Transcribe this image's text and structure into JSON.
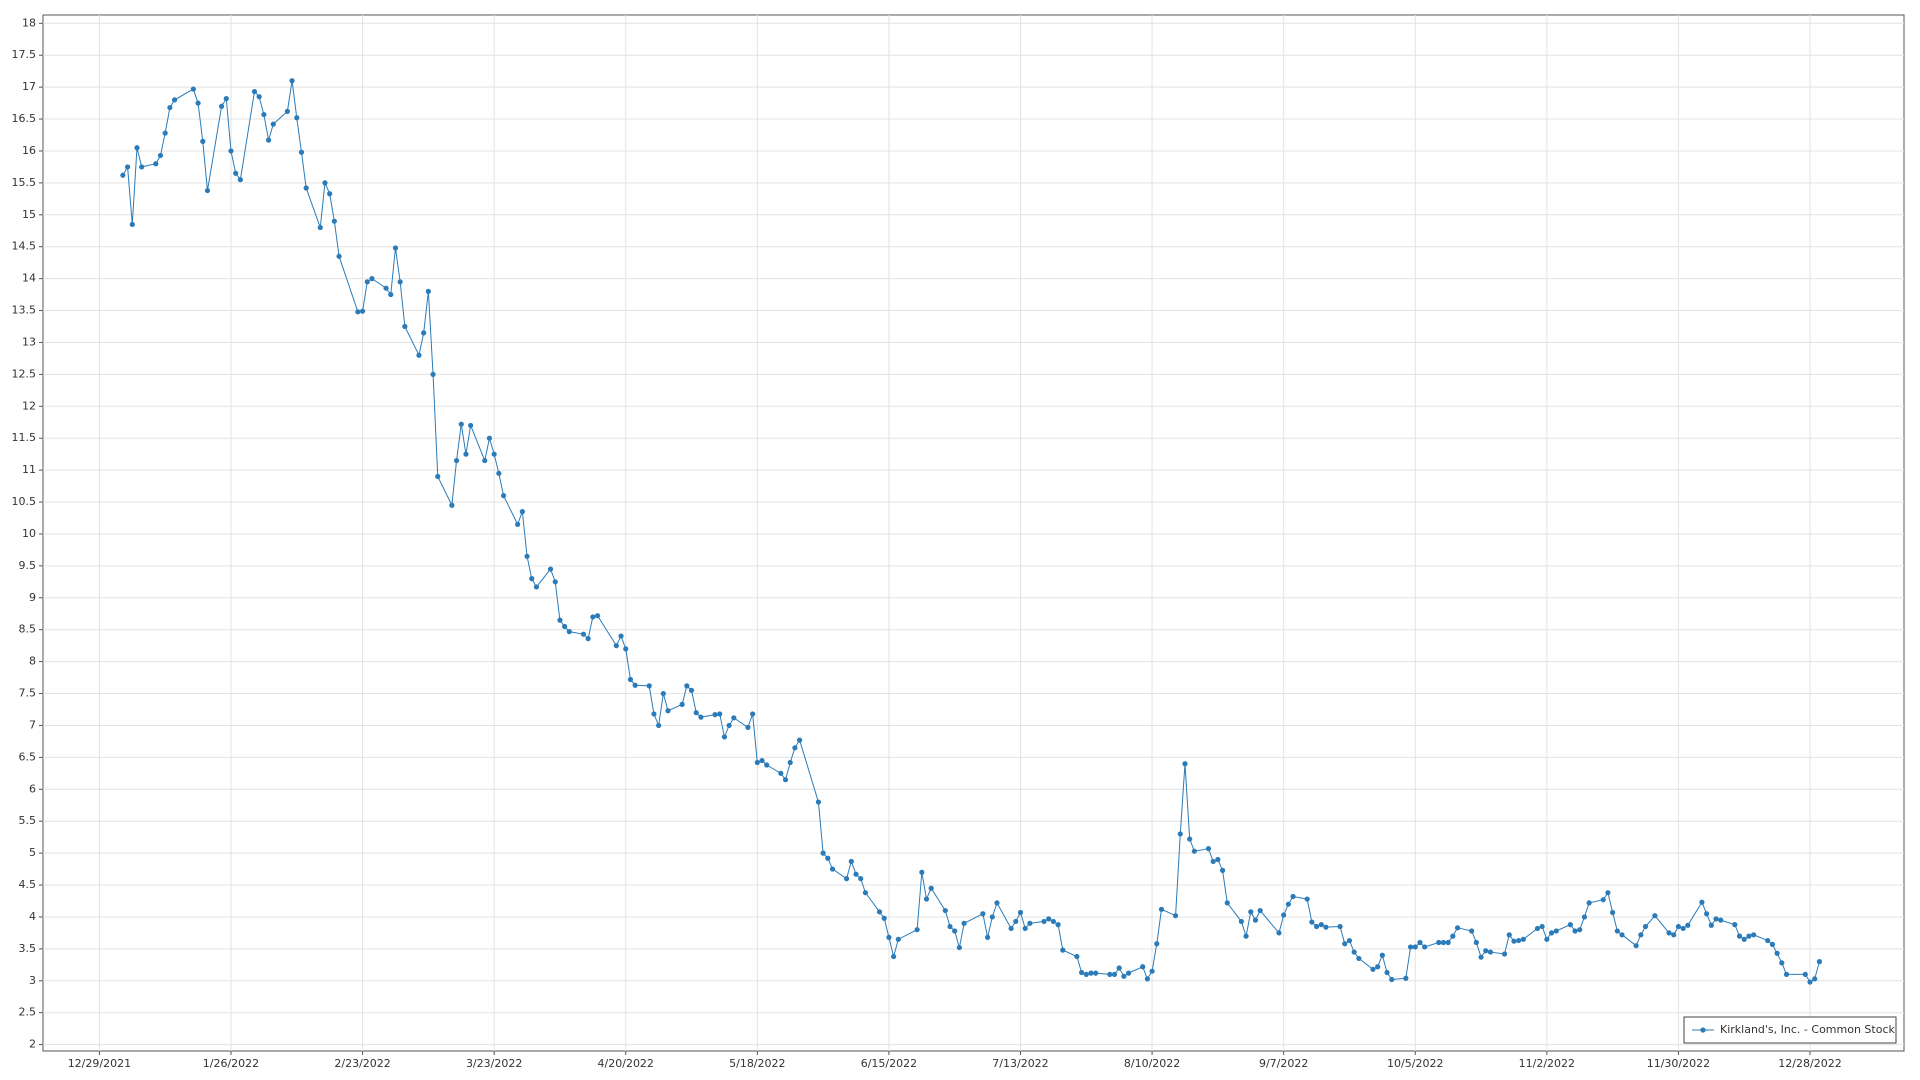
{
  "chart_data": {
    "type": "line",
    "xlim": [
      "12/17/2021",
      "1/17/2023"
    ],
    "xticks": [
      "12/29/2021",
      "1/26/2022",
      "2/23/2022",
      "3/23/2022",
      "4/20/2022",
      "5/18/2022",
      "6/15/2022",
      "7/13/2022",
      "8/10/2022",
      "9/7/2022",
      "10/5/2022",
      "11/2/2022",
      "11/30/2022",
      "12/28/2022"
    ],
    "ylim": [
      1.9,
      18.13
    ],
    "yticks": [
      2,
      2.5,
      3,
      3.5,
      4,
      4.5,
      5,
      5.5,
      6,
      6.5,
      7,
      7.5,
      8,
      8.5,
      9,
      9.5,
      10,
      10.5,
      11,
      11.5,
      12,
      12.5,
      13,
      13.5,
      14,
      14.5,
      15,
      15.5,
      16,
      16.5,
      17,
      17.5,
      18
    ],
    "grid": true,
    "legend": "bottom-right",
    "x": [
      "1/3/2022",
      "1/4/2022",
      "1/5/2022",
      "1/6/2022",
      "1/7/2022",
      "1/10/2022",
      "1/11/2022",
      "1/12/2022",
      "1/13/2022",
      "1/14/2022",
      "1/18/2022",
      "1/19/2022",
      "1/20/2022",
      "1/21/2022",
      "1/24/2022",
      "1/25/2022",
      "1/26/2022",
      "1/27/2022",
      "1/28/2022",
      "1/31/2022",
      "2/1/2022",
      "2/2/2022",
      "2/3/2022",
      "2/4/2022",
      "2/7/2022",
      "2/8/2022",
      "2/9/2022",
      "2/10/2022",
      "2/11/2022",
      "2/14/2022",
      "2/15/2022",
      "2/16/2022",
      "2/17/2022",
      "2/18/2022",
      "2/22/2022",
      "2/23/2022",
      "2/24/2022",
      "2/25/2022",
      "2/28/2022",
      "3/1/2022",
      "3/2/2022",
      "3/3/2022",
      "3/4/2022",
      "3/7/2022",
      "3/8/2022",
      "3/9/2022",
      "3/10/2022",
      "3/11/2022",
      "3/14/2022",
      "3/15/2022",
      "3/16/2022",
      "3/17/2022",
      "3/18/2022",
      "3/21/2022",
      "3/22/2022",
      "3/23/2022",
      "3/24/2022",
      "3/25/2022",
      "3/28/2022",
      "3/29/2022",
      "3/30/2022",
      "3/31/2022",
      "4/1/2022",
      "4/4/2022",
      "4/5/2022",
      "4/6/2022",
      "4/7/2022",
      "4/8/2022",
      "4/11/2022",
      "4/12/2022",
      "4/13/2022",
      "4/14/2022",
      "4/18/2022",
      "4/19/2022",
      "4/20/2022",
      "4/21/2022",
      "4/22/2022",
      "4/25/2022",
      "4/26/2022",
      "4/27/2022",
      "4/28/2022",
      "4/29/2022",
      "5/2/2022",
      "5/3/2022",
      "5/4/2022",
      "5/5/2022",
      "5/6/2022",
      "5/9/2022",
      "5/10/2022",
      "5/11/2022",
      "5/12/2022",
      "5/13/2022",
      "5/16/2022",
      "5/17/2022",
      "5/18/2022",
      "5/19/2022",
      "5/20/2022",
      "5/23/2022",
      "5/24/2022",
      "5/25/2022",
      "5/26/2022",
      "5/27/2022",
      "5/31/2022",
      "6/1/2022",
      "6/2/2022",
      "6/3/2022",
      "6/6/2022",
      "6/7/2022",
      "6/8/2022",
      "6/9/2022",
      "6/10/2022",
      "6/13/2022",
      "6/14/2022",
      "6/15/2022",
      "6/16/2022",
      "6/17/2022",
      "6/21/2022",
      "6/22/2022",
      "6/23/2022",
      "6/24/2022",
      "6/27/2022",
      "6/28/2022",
      "6/29/2022",
      "6/30/2022",
      "7/1/2022",
      "7/5/2022",
      "7/6/2022",
      "7/7/2022",
      "7/8/2022",
      "7/11/2022",
      "7/12/2022",
      "7/13/2022",
      "7/14/2022",
      "7/15/2022",
      "7/18/2022",
      "7/19/2022",
      "7/20/2022",
      "7/21/2022",
      "7/22/2022",
      "7/25/2022",
      "7/26/2022",
      "7/27/2022",
      "7/28/2022",
      "7/29/2022",
      "8/1/2022",
      "8/2/2022",
      "8/3/2022",
      "8/4/2022",
      "8/5/2022",
      "8/8/2022",
      "8/9/2022",
      "8/10/2022",
      "8/11/2022",
      "8/12/2022",
      "8/15/2022",
      "8/16/2022",
      "8/17/2022",
      "8/18/2022",
      "8/19/2022",
      "8/22/2022",
      "8/23/2022",
      "8/24/2022",
      "8/25/2022",
      "8/26/2022",
      "8/29/2022",
      "8/30/2022",
      "8/31/2022",
      "9/1/2022",
      "9/2/2022",
      "9/6/2022",
      "9/7/2022",
      "9/8/2022",
      "9/9/2022",
      "9/12/2022",
      "9/13/2022",
      "9/14/2022",
      "9/15/2022",
      "9/16/2022",
      "9/19/2022",
      "9/20/2022",
      "9/21/2022",
      "9/22/2022",
      "9/23/2022",
      "9/26/2022",
      "9/27/2022",
      "9/28/2022",
      "9/29/2022",
      "9/30/2022",
      "10/3/2022",
      "10/4/2022",
      "10/5/2022",
      "10/6/2022",
      "10/7/2022",
      "10/10/2022",
      "10/11/2022",
      "10/12/2022",
      "10/13/2022",
      "10/14/2022",
      "10/17/2022",
      "10/18/2022",
      "10/19/2022",
      "10/20/2022",
      "10/21/2022",
      "10/24/2022",
      "10/25/2022",
      "10/26/2022",
      "10/27/2022",
      "10/28/2022",
      "10/31/2022",
      "11/1/2022",
      "11/2/2022",
      "11/3/2022",
      "11/4/2022",
      "11/7/2022",
      "11/8/2022",
      "11/9/2022",
      "11/10/2022",
      "11/11/2022",
      "11/14/2022",
      "11/15/2022",
      "11/16/2022",
      "11/17/2022",
      "11/18/2022",
      "11/21/2022",
      "11/22/2022",
      "11/23/2022",
      "11/25/2022",
      "11/28/2022",
      "11/29/2022",
      "11/30/2022",
      "12/1/2022",
      "12/2/2022",
      "12/5/2022",
      "12/6/2022",
      "12/7/2022",
      "12/8/2022",
      "12/9/2022",
      "12/12/2022",
      "12/13/2022",
      "12/14/2022",
      "12/15/2022",
      "12/16/2022",
      "12/19/2022",
      "12/20/2022",
      "12/21/2022",
      "12/22/2022",
      "12/23/2022",
      "12/27/2022",
      "12/28/2022",
      "12/29/2022",
      "12/30/2022"
    ],
    "series": [
      {
        "name": "Kirkland's, Inc. - Common Stock",
        "color": "#2b7bb9",
        "values": [
          15.62,
          15.75,
          14.85,
          16.05,
          15.75,
          15.8,
          15.93,
          16.28,
          16.68,
          16.8,
          16.97,
          16.75,
          16.15,
          15.38,
          16.7,
          16.82,
          16.0,
          15.65,
          15.55,
          16.93,
          16.85,
          16.57,
          16.17,
          16.42,
          16.62,
          17.1,
          16.52,
          15.98,
          15.42,
          14.8,
          15.5,
          15.33,
          14.9,
          14.35,
          13.48,
          13.49,
          13.95,
          14.0,
          13.85,
          13.75,
          14.48,
          13.95,
          13.25,
          12.8,
          13.15,
          13.8,
          12.5,
          10.9,
          10.45,
          11.15,
          11.72,
          11.25,
          11.7,
          11.15,
          11.5,
          11.25,
          10.95,
          10.6,
          10.15,
          10.35,
          9.65,
          9.3,
          9.17,
          9.45,
          9.25,
          8.65,
          8.55,
          8.47,
          8.43,
          8.36,
          8.7,
          8.72,
          8.25,
          8.4,
          8.2,
          7.72,
          7.63,
          7.62,
          7.18,
          7.0,
          7.5,
          7.23,
          7.33,
          7.62,
          7.55,
          7.2,
          7.13,
          7.17,
          7.18,
          6.82,
          7.0,
          7.12,
          6.97,
          7.18,
          6.42,
          6.45,
          6.38,
          6.25,
          6.15,
          6.42,
          6.65,
          6.77,
          5.8,
          5.0,
          4.92,
          4.75,
          4.6,
          4.87,
          4.67,
          4.6,
          4.38,
          4.08,
          3.98,
          3.68,
          3.38,
          3.65,
          3.8,
          4.7,
          4.28,
          4.45,
          4.1,
          3.85,
          3.78,
          3.52,
          3.9,
          4.05,
          3.68,
          4.0,
          4.22,
          3.82,
          3.93,
          4.07,
          3.82,
          3.9,
          3.93,
          3.97,
          3.93,
          3.88,
          3.48,
          3.38,
          3.13,
          3.1,
          3.12,
          3.12,
          3.1,
          3.1,
          3.2,
          3.07,
          3.12,
          3.22,
          3.03,
          3.15,
          3.58,
          4.12,
          4.02,
          5.3,
          6.4,
          5.22,
          5.03,
          5.07,
          4.87,
          4.9,
          4.73,
          4.22,
          3.93,
          3.7,
          4.08,
          3.95,
          4.1,
          3.75,
          4.03,
          4.2,
          4.32,
          4.28,
          3.92,
          3.85,
          3.88,
          3.84,
          3.85,
          3.58,
          3.63,
          3.45,
          3.35,
          3.18,
          3.22,
          3.4,
          3.13,
          3.02,
          3.04,
          3.53,
          3.53,
          3.6,
          3.53,
          3.6,
          3.6,
          3.6,
          3.7,
          3.83,
          3.78,
          3.6,
          3.37,
          3.47,
          3.45,
          3.42,
          3.72,
          3.62,
          3.63,
          3.65,
          3.82,
          3.85,
          3.65,
          3.75,
          3.78,
          3.88,
          3.78,
          3.8,
          4.0,
          4.22,
          4.27,
          4.38,
          4.07,
          3.78,
          3.72,
          3.55,
          3.72,
          3.85,
          4.02,
          3.75,
          3.72,
          3.85,
          3.82,
          3.87,
          4.23,
          4.05,
          3.87,
          3.97,
          3.95,
          3.88,
          3.7,
          3.65,
          3.7,
          3.72,
          3.63,
          3.57,
          3.43,
          3.28,
          3.1,
          3.1,
          2.98,
          3.03,
          3.3
        ]
      }
    ]
  }
}
